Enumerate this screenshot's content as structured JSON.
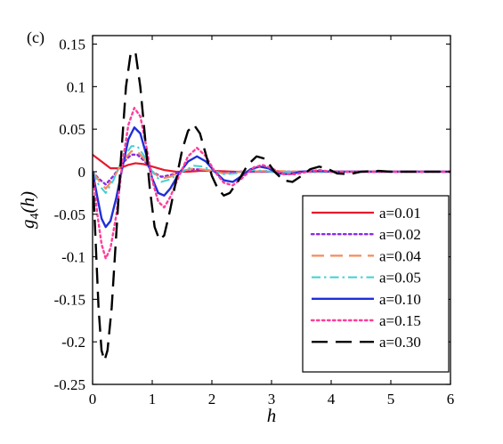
{
  "panel_label": "(c)",
  "chart_data": {
    "type": "line",
    "xlabel": "h",
    "ylabel": {
      "base": "g",
      "sub": "4",
      "arg": "(h)"
    },
    "xlim": [
      0,
      6
    ],
    "ylim": [
      -0.25,
      0.16
    ],
    "xticks": [
      0,
      1,
      2,
      3,
      4,
      5,
      6
    ],
    "xtick_labels": [
      "0",
      "1",
      "2",
      "3",
      "4",
      "5",
      "6"
    ],
    "yticks": [
      -0.25,
      -0.2,
      -0.15,
      -0.1,
      -0.05,
      0,
      0.05,
      0.1,
      0.15
    ],
    "ytick_labels": [
      "-0.25",
      "-0.2",
      "-0.15",
      "-0.1",
      "-0.05",
      "0",
      "0.05",
      "0.1",
      "0.15"
    ],
    "grid": false,
    "legend": "lower-right",
    "series": [
      {
        "name": "a=0.01",
        "color": "#e8192c",
        "dash": "solid",
        "width": 2.2,
        "points": [
          [
            0,
            0.02
          ],
          [
            0.15,
            0.012
          ],
          [
            0.3,
            0.004
          ],
          [
            0.45,
            0.004
          ],
          [
            0.6,
            0.008
          ],
          [
            0.72,
            0.01
          ],
          [
            0.85,
            0.009
          ],
          [
            1.0,
            0.006
          ],
          [
            1.2,
            0.002
          ],
          [
            1.4,
            0.0
          ],
          [
            1.6,
            0.0
          ],
          [
            1.8,
            0.001
          ],
          [
            2.0,
            0.001
          ],
          [
            2.4,
            0.0
          ],
          [
            3.0,
            0.0
          ],
          [
            6.0,
            0.0
          ]
        ]
      },
      {
        "name": "a=0.02",
        "color": "#8a2be2",
        "dash": "dot",
        "width": 2.4,
        "points": [
          [
            0,
            0.0
          ],
          [
            0.1,
            -0.008
          ],
          [
            0.22,
            -0.015
          ],
          [
            0.35,
            -0.005
          ],
          [
            0.5,
            0.01
          ],
          [
            0.65,
            0.02
          ],
          [
            0.75,
            0.02
          ],
          [
            0.88,
            0.012
          ],
          [
            1.0,
            0.0
          ],
          [
            1.15,
            -0.006
          ],
          [
            1.3,
            -0.004
          ],
          [
            1.5,
            0.0
          ],
          [
            1.7,
            0.003
          ],
          [
            1.9,
            0.002
          ],
          [
            2.2,
            -0.001
          ],
          [
            2.5,
            0.0
          ],
          [
            3.0,
            0.0
          ],
          [
            6.0,
            0.0
          ]
        ]
      },
      {
        "name": "a=0.04",
        "color": "#f48c5e",
        "dash": "longdash",
        "width": 2.2,
        "points": [
          [
            0,
            0.0
          ],
          [
            0.1,
            -0.01
          ],
          [
            0.22,
            -0.02
          ],
          [
            0.35,
            -0.008
          ],
          [
            0.5,
            0.012
          ],
          [
            0.65,
            0.024
          ],
          [
            0.75,
            0.024
          ],
          [
            0.88,
            0.014
          ],
          [
            1.0,
            0.0
          ],
          [
            1.15,
            -0.008
          ],
          [
            1.3,
            -0.006
          ],
          [
            1.5,
            0.001
          ],
          [
            1.7,
            0.004
          ],
          [
            1.9,
            0.002
          ],
          [
            2.2,
            -0.002
          ],
          [
            2.5,
            0.0
          ],
          [
            3.0,
            0.001
          ],
          [
            3.5,
            0.0
          ],
          [
            6.0,
            0.0
          ]
        ]
      },
      {
        "name": "a=0.05",
        "color": "#3fd0d4",
        "dash": "dashdot",
        "width": 2.0,
        "points": [
          [
            0,
            0.0
          ],
          [
            0.1,
            -0.015
          ],
          [
            0.22,
            -0.025
          ],
          [
            0.35,
            -0.01
          ],
          [
            0.5,
            0.015
          ],
          [
            0.65,
            0.03
          ],
          [
            0.75,
            0.03
          ],
          [
            0.88,
            0.017
          ],
          [
            1.0,
            0.0
          ],
          [
            1.15,
            -0.012
          ],
          [
            1.3,
            -0.009
          ],
          [
            1.5,
            0.0
          ],
          [
            1.7,
            0.007
          ],
          [
            1.85,
            0.006
          ],
          [
            2.0,
            0.002
          ],
          [
            2.2,
            -0.003
          ],
          [
            2.4,
            -0.002
          ],
          [
            2.7,
            0.002
          ],
          [
            3.0,
            0.0
          ],
          [
            3.5,
            0.0
          ],
          [
            6.0,
            0.0
          ]
        ]
      },
      {
        "name": "a=0.10",
        "color": "#1f2fd8",
        "dash": "solid",
        "width": 2.4,
        "points": [
          [
            0,
            0.0
          ],
          [
            0.08,
            -0.03
          ],
          [
            0.15,
            -0.055
          ],
          [
            0.22,
            -0.065
          ],
          [
            0.3,
            -0.058
          ],
          [
            0.4,
            -0.03
          ],
          [
            0.5,
            0.005
          ],
          [
            0.6,
            0.038
          ],
          [
            0.7,
            0.052
          ],
          [
            0.8,
            0.045
          ],
          [
            0.9,
            0.02
          ],
          [
            1.0,
            -0.008
          ],
          [
            1.1,
            -0.025
          ],
          [
            1.2,
            -0.028
          ],
          [
            1.3,
            -0.02
          ],
          [
            1.45,
            -0.002
          ],
          [
            1.6,
            0.012
          ],
          [
            1.75,
            0.018
          ],
          [
            1.9,
            0.012
          ],
          [
            2.05,
            0.0
          ],
          [
            2.2,
            -0.01
          ],
          [
            2.35,
            -0.012
          ],
          [
            2.5,
            -0.005
          ],
          [
            2.65,
            0.003
          ],
          [
            2.8,
            0.006
          ],
          [
            2.95,
            0.004
          ],
          [
            3.1,
            -0.002
          ],
          [
            3.3,
            -0.003
          ],
          [
            3.5,
            0.0
          ],
          [
            3.8,
            0.001
          ],
          [
            4.0,
            0.0
          ],
          [
            6.0,
            0.0
          ]
        ]
      },
      {
        "name": "a=0.15",
        "color": "#ff3d9a",
        "dash": "dot",
        "width": 2.4,
        "points": [
          [
            0,
            0.0
          ],
          [
            0.08,
            -0.05
          ],
          [
            0.15,
            -0.085
          ],
          [
            0.22,
            -0.102
          ],
          [
            0.3,
            -0.09
          ],
          [
            0.4,
            -0.05
          ],
          [
            0.5,
            0.01
          ],
          [
            0.6,
            0.055
          ],
          [
            0.7,
            0.075
          ],
          [
            0.8,
            0.065
          ],
          [
            0.9,
            0.03
          ],
          [
            1.0,
            -0.01
          ],
          [
            1.1,
            -0.035
          ],
          [
            1.2,
            -0.042
          ],
          [
            1.3,
            -0.03
          ],
          [
            1.45,
            -0.005
          ],
          [
            1.6,
            0.018
          ],
          [
            1.75,
            0.028
          ],
          [
            1.9,
            0.018
          ],
          [
            2.05,
            0.0
          ],
          [
            2.2,
            -0.013
          ],
          [
            2.35,
            -0.016
          ],
          [
            2.5,
            -0.008
          ],
          [
            2.7,
            0.005
          ],
          [
            2.85,
            0.008
          ],
          [
            3.0,
            0.004
          ],
          [
            3.2,
            -0.003
          ],
          [
            3.4,
            -0.003
          ],
          [
            3.6,
            0.0
          ],
          [
            3.8,
            0.002
          ],
          [
            4.0,
            0.0
          ],
          [
            6.0,
            0.0
          ]
        ]
      },
      {
        "name": "a=0.30",
        "color": "#000000",
        "dash": "bigdash",
        "width": 2.4,
        "points": [
          [
            0,
            0.0
          ],
          [
            0.05,
            -0.08
          ],
          [
            0.1,
            -0.16
          ],
          [
            0.15,
            -0.21
          ],
          [
            0.2,
            -0.222
          ],
          [
            0.25,
            -0.21
          ],
          [
            0.32,
            -0.16
          ],
          [
            0.4,
            -0.07
          ],
          [
            0.48,
            0.02
          ],
          [
            0.56,
            0.1
          ],
          [
            0.64,
            0.14
          ],
          [
            0.72,
            0.14
          ],
          [
            0.8,
            0.1
          ],
          [
            0.88,
            0.04
          ],
          [
            0.96,
            -0.02
          ],
          [
            1.04,
            -0.065
          ],
          [
            1.12,
            -0.08
          ],
          [
            1.2,
            -0.075
          ],
          [
            1.3,
            -0.045
          ],
          [
            1.4,
            -0.01
          ],
          [
            1.5,
            0.025
          ],
          [
            1.6,
            0.048
          ],
          [
            1.7,
            0.055
          ],
          [
            1.8,
            0.045
          ],
          [
            1.9,
            0.02
          ],
          [
            2.0,
            -0.005
          ],
          [
            2.1,
            -0.02
          ],
          [
            2.2,
            -0.028
          ],
          [
            2.3,
            -0.025
          ],
          [
            2.45,
            -0.01
          ],
          [
            2.6,
            0.008
          ],
          [
            2.75,
            0.018
          ],
          [
            2.9,
            0.015
          ],
          [
            3.05,
            0.0
          ],
          [
            3.2,
            -0.01
          ],
          [
            3.35,
            -0.012
          ],
          [
            3.5,
            -0.005
          ],
          [
            3.65,
            0.003
          ],
          [
            3.8,
            0.006
          ],
          [
            3.95,
            0.003
          ],
          [
            4.1,
            -0.002
          ],
          [
            4.3,
            -0.003
          ],
          [
            4.5,
            0.0
          ],
          [
            4.8,
            0.001
          ],
          [
            5.0,
            0.0
          ],
          [
            6.0,
            0.0
          ]
        ]
      }
    ]
  }
}
